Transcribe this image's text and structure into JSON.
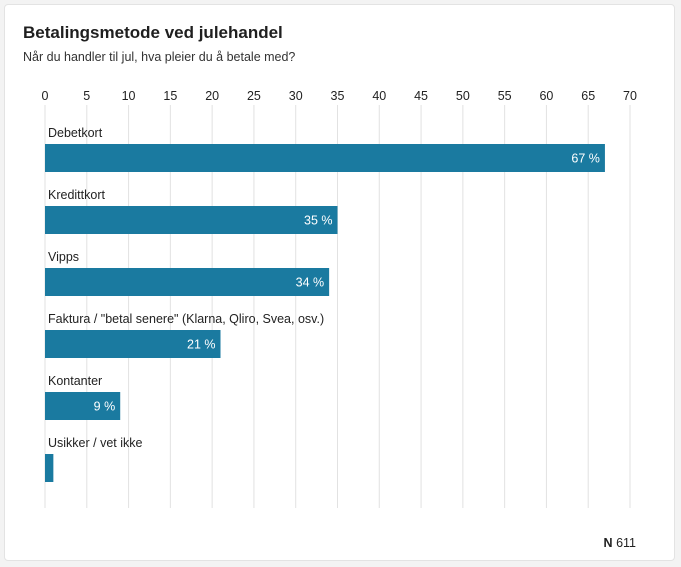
{
  "title": "Betalingsmetode ved julehandel",
  "subtitle": "Når du handler til jul, hva pleier du å betale med?",
  "footer": {
    "n_label": "N",
    "n_value": "611"
  },
  "colors": {
    "bar": "#1a7aa0",
    "grid": "#e2e2e2",
    "text": "#222222",
    "label_on_bar": "#ffffff"
  },
  "chart_data": {
    "type": "bar",
    "orientation": "horizontal",
    "categories": [
      "Debetkort",
      "Kredittkort",
      "Vipps",
      "Faktura / \"betal senere\" (Klarna, Qliro, Svea, osv.)",
      "Kontanter",
      "Usikker / vet ikke"
    ],
    "values": [
      67,
      35,
      34,
      21,
      9,
      1
    ],
    "data_labels": [
      "67 %",
      "35 %",
      "34 %",
      "21 %",
      "9 %",
      ""
    ],
    "xlim": [
      0,
      70
    ],
    "xticks": [
      0,
      5,
      10,
      15,
      20,
      25,
      30,
      35,
      40,
      45,
      50,
      55,
      60,
      65,
      70
    ],
    "axis_position": "top",
    "grid": true,
    "legend": "none"
  }
}
